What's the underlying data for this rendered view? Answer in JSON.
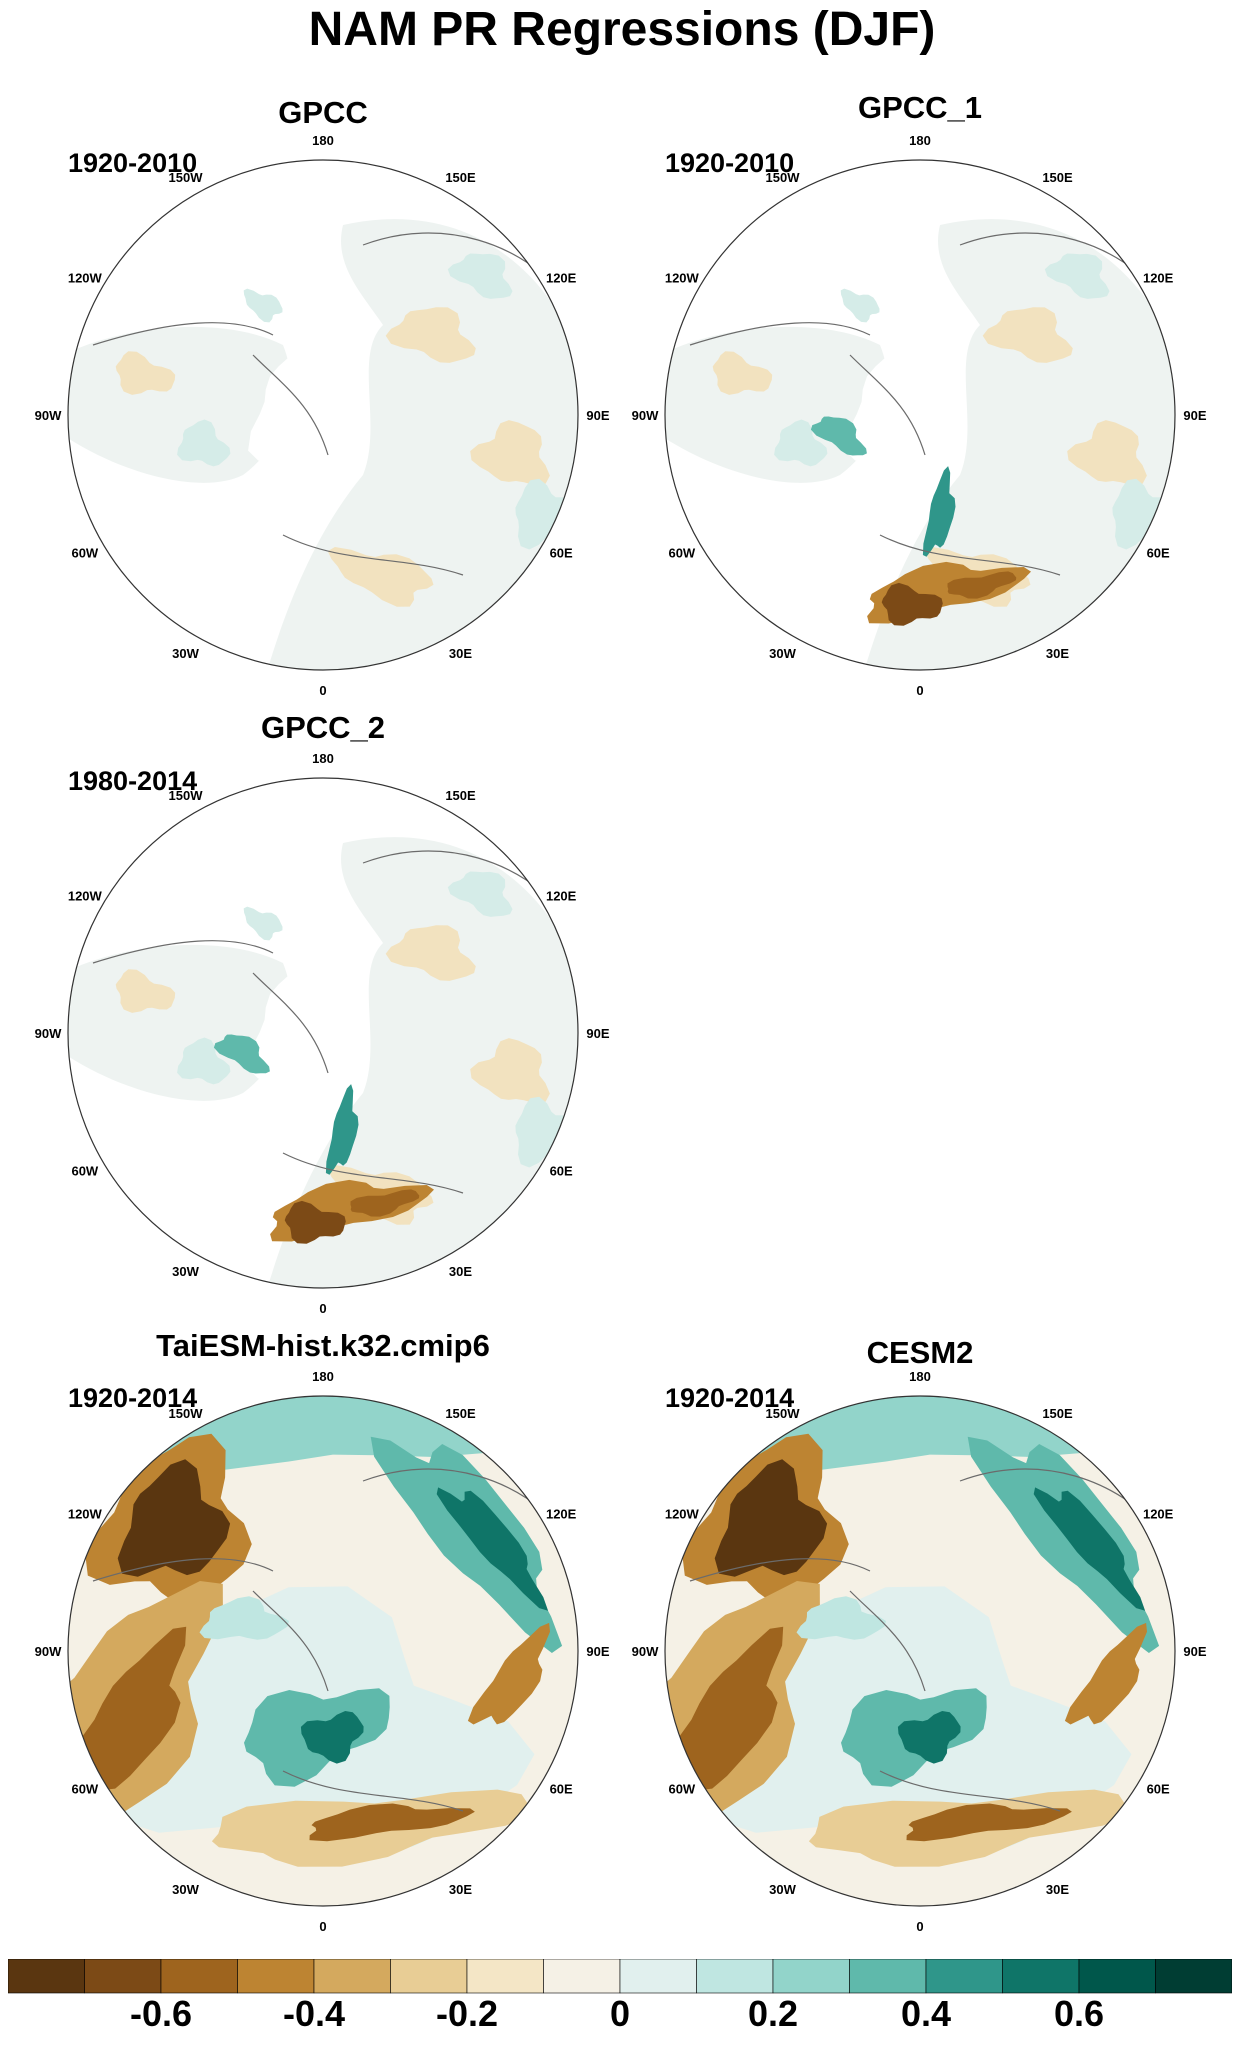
{
  "title": "NAM PR Regressions (DJF)",
  "panels": [
    {
      "name": "GPCC",
      "years": "1920-2010",
      "kind": "obs"
    },
    {
      "name": "GPCC_1",
      "years": "1920-2010",
      "kind": "obs"
    },
    {
      "name": "GPCC_2",
      "years": "1980-2014",
      "kind": "obs"
    },
    {
      "name": "TaiESM-hist.k32.cmip6",
      "years": "1920-2014",
      "kind": "model"
    },
    {
      "name": "CESM2",
      "years": "1920-2014",
      "kind": "model"
    }
  ],
  "lon_labels": [
    "180",
    "150E",
    "120E",
    "90E",
    "60E",
    "30E",
    "0",
    "30W",
    "60W",
    "90W",
    "120W",
    "150W"
  ],
  "colorbar": {
    "colors": [
      "#5a3610",
      "#7c4a16",
      "#9e641e",
      "#bd8432",
      "#d4a95e",
      "#e8cd95",
      "#f4e6c6",
      "#f5f1e6",
      "#e1f0ee",
      "#bfe6e1",
      "#92d4ca",
      "#5fb9ab",
      "#2f968a",
      "#0f7568",
      "#00574b",
      "#003d33"
    ],
    "labels": [
      "-0.6",
      "-0.4",
      "-0.2",
      "0",
      "0.2",
      "0.4",
      "0.6"
    ]
  }
}
